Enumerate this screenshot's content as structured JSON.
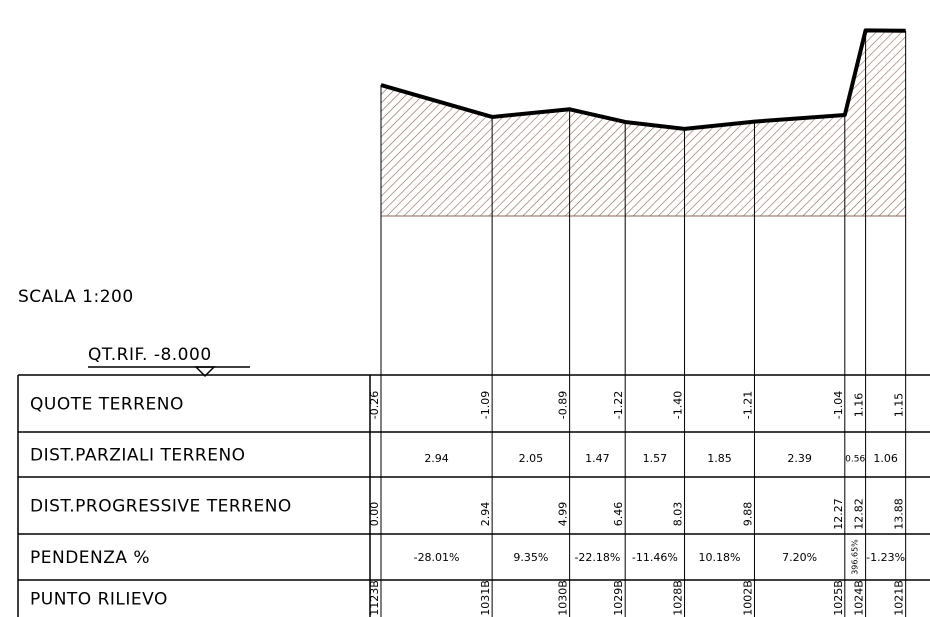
{
  "scale": "SCALA 1:200",
  "reference": "QT.RIF. -8.000",
  "rows": [
    "QUOTE TERRENO",
    "DIST.PARZIALI TERRENO",
    "DIST.PROGRESSIVE TERRENO",
    "PENDENZA %",
    "PUNTO RILIEVO"
  ],
  "stations": [
    {
      "quota": "-0.26",
      "progressiva": "0.00",
      "punto": "1123B"
    },
    {
      "quota": "-1.09",
      "progressiva": "2.94",
      "punto": "1031B"
    },
    {
      "quota": "-0.89",
      "progressiva": "4.99",
      "punto": "1030B"
    },
    {
      "quota": "-1.22",
      "progressiva": "6.46",
      "punto": "1029B"
    },
    {
      "quota": "-1.40",
      "progressiva": "8.03",
      "punto": "1028B"
    },
    {
      "quota": "-1.21",
      "progressiva": "9.88",
      "punto": "1002B"
    },
    {
      "quota": "-1.04",
      "progressiva": "12.27",
      "punto": "1025B"
    },
    {
      "quota": "1.16",
      "progressiva": "12.82",
      "punto": "1024B"
    },
    {
      "quota": "1.15",
      "progressiva": "13.88",
      "punto": "1021B"
    }
  ],
  "segments": [
    {
      "parziale": "2.94",
      "pendenza": "-28.01%"
    },
    {
      "parziale": "2.05",
      "pendenza": "9.35%"
    },
    {
      "parziale": "1.47",
      "pendenza": "-22.18%"
    },
    {
      "parziale": "1.57",
      "pendenza": "-11.46%"
    },
    {
      "parziale": "1.85",
      "pendenza": "10.18%"
    },
    {
      "parziale": "2.39",
      "pendenza": "7.20%"
    },
    {
      "parziale": "0.56",
      "pendenza": "396.65%"
    },
    {
      "parziale": "1.06",
      "pendenza": "-1.23%"
    }
  ]
}
